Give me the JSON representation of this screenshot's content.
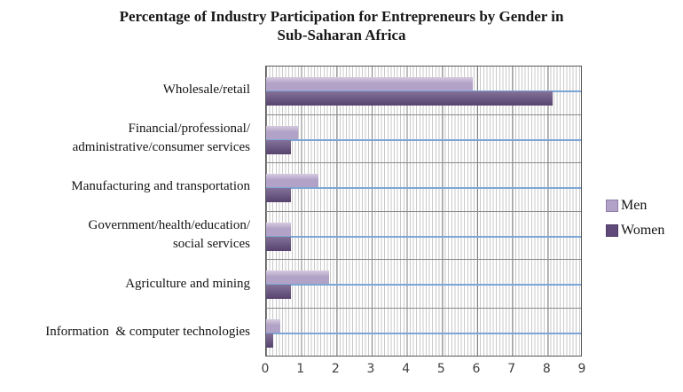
{
  "chart_data": {
    "type": "bar",
    "orientation": "horizontal",
    "title": "Percentage of Industry Participation for Entrepreneurs by Gender in Sub-Saharan Africa",
    "title_lines": [
      "Percentage of Industry Participation for Entrepreneurs by Gender in",
      "Sub-Saharan Africa"
    ],
    "categories": [
      {
        "label": "Wholesale/retail",
        "lines": [
          "Wholesale/retail"
        ]
      },
      {
        "label": "Financial/professional/administrative/consumer services",
        "lines": [
          "Financial/professional/",
          "administrative/consumer services"
        ]
      },
      {
        "label": "Manufacturing and transportation",
        "lines": [
          "Manufacturing and transportation"
        ]
      },
      {
        "label": "Government/health/education/social services",
        "lines": [
          "Government/health/education/",
          "social services"
        ]
      },
      {
        "label": "Agriculture and mining",
        "lines": [
          "Agriculture and mining"
        ]
      },
      {
        "label": "Information  & computer technologies",
        "lines": [
          "Information  & computer technologies"
        ]
      }
    ],
    "series": [
      {
        "name": "Men",
        "color": "#b3a2c7",
        "values": [
          5.9,
          0.9,
          1.5,
          0.7,
          1.8,
          0.4
        ]
      },
      {
        "name": "Women",
        "color": "#604a7b",
        "values": [
          8.2,
          0.7,
          0.7,
          0.7,
          0.7,
          0.2
        ]
      }
    ],
    "xlabel": "",
    "ylabel": "",
    "xlim": [
      0,
      9
    ],
    "x_ticks": [
      0,
      1,
      2,
      3,
      4,
      5,
      6,
      7,
      8,
      9
    ],
    "legend_position": "right",
    "grid": {
      "major_vertical": true,
      "pattern_fill": "fine-vertical-stripes",
      "band_separator_line_color": "#7ca6d5",
      "major_grid_color": "#7f7f7f",
      "stripe_color": "#c9c9c9"
    }
  }
}
